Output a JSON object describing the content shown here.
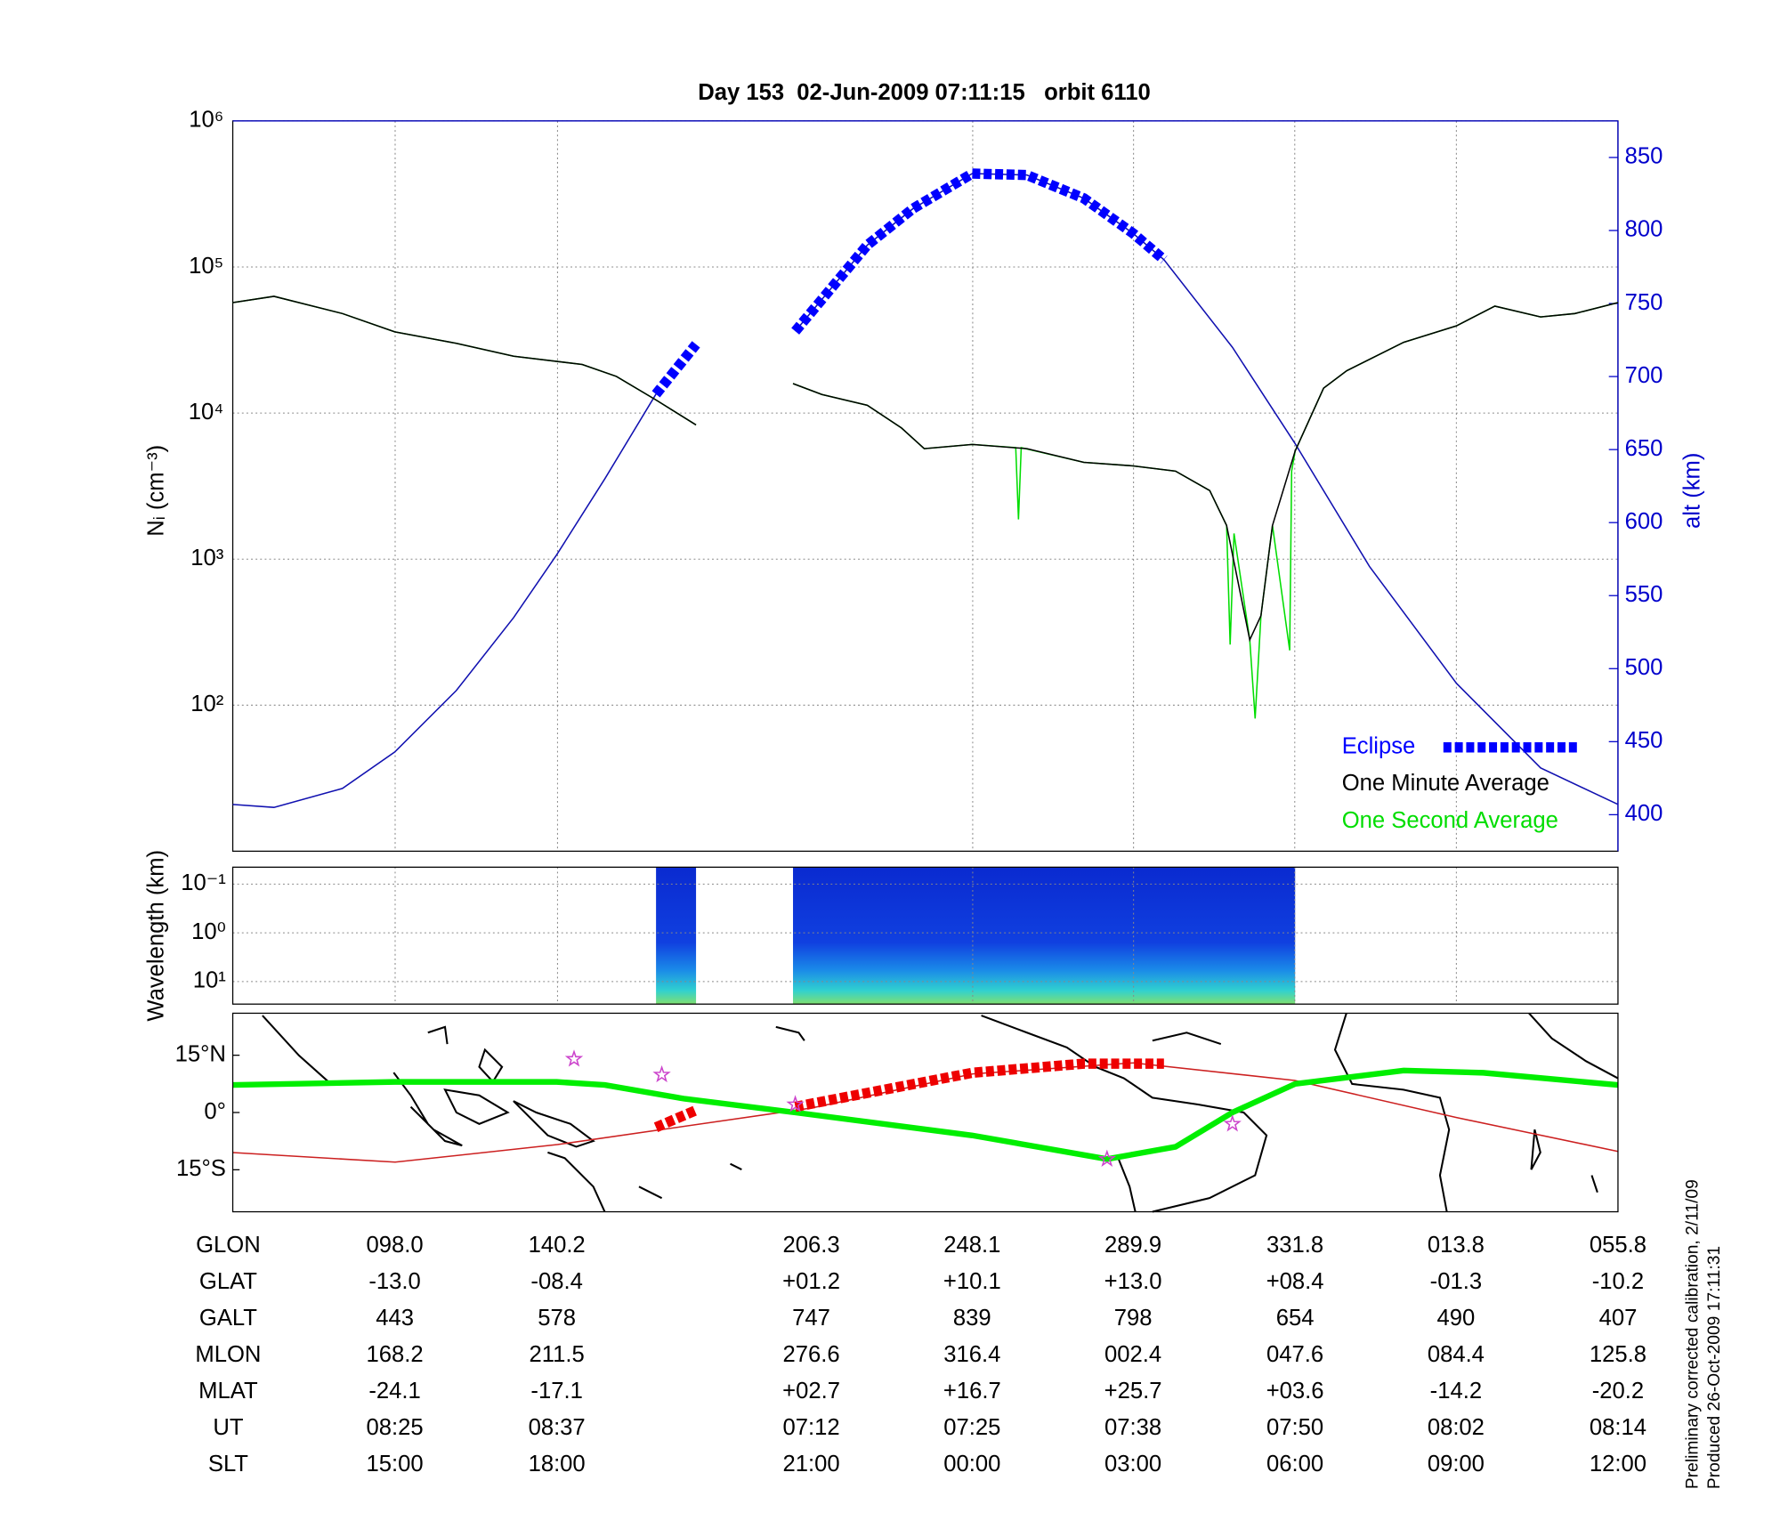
{
  "chart_data": [
    {
      "type": "line",
      "title": "Day 153  02-Jun-2009 07:11:15   orbit 6110",
      "ylabel": "Nᵢ (cm⁻³)",
      "y2label": "alt (km)",
      "ylog": true,
      "ylim": [
        10,
        1000000
      ],
      "yticks": [
        {
          "value": 100,
          "label": "10²"
        },
        {
          "value": 1000,
          "label": "10³"
        },
        {
          "value": 10000,
          "label": "10⁴"
        },
        {
          "value": 100000,
          "label": "10⁵"
        },
        {
          "value": 1000000,
          "label": "10⁶"
        }
      ],
      "y2lim": [
        375,
        875
      ],
      "y2ticks": [
        400,
        450,
        500,
        550,
        600,
        650,
        700,
        750,
        800,
        850
      ],
      "xlim": [
        55.8,
        415.8
      ],
      "xticks": [
        98,
        140.2,
        248.1,
        289.9,
        331.8,
        373.8
      ],
      "grid": true,
      "legend": "lower right",
      "series": [
        {
          "color": "#1010b0",
          "axis": "y2",
          "x": [
            55.8,
            66.5,
            84.3,
            97.9,
            113.9,
            128.8,
            140.0,
            152.5,
            165.8,
            190,
            202.0,
            220.7,
            232.6,
            248.0,
            262.2,
            277.0,
            289.8,
            297.8,
            315.6,
            331.9,
            351.2,
            373.8,
            395.7,
            415.8
          ],
          "values": [
            407,
            405,
            418,
            443,
            485,
            535,
            578,
            630,
            688,
            null,
            731,
            790,
            815,
            839,
            838,
            822,
            798,
            780,
            720,
            654,
            570,
            490,
            432,
            407
          ]
        },
        {
          "name": "Eclipse",
          "color": "#0000ff",
          "axis": "y2",
          "marker": "square",
          "x": [
            165.8,
            176.2,
            190,
            202.0,
            220.7,
            232.6,
            248.0,
            262.2,
            277.0,
            289.8,
            297.8
          ],
          "values": [
            688,
            722,
            null,
            731,
            790,
            815,
            839,
            838,
            822,
            798,
            780
          ]
        },
        {
          "name": "One Minute Average",
          "color": "#000000",
          "x": [
            55.8,
            66.5,
            84.3,
            97.9,
            113.9,
            128.8,
            146.6,
            155.5,
            165.8,
            176.2,
            190,
            201.4,
            208.9,
            220.7,
            229.6,
            235.5,
            248.0,
            262.2,
            277.0,
            289.8,
            300.8,
            309.7,
            314.1,
            320.1,
            323.0,
            326.0,
            331.9,
            339.3,
            345.3,
            360.1,
            373.8,
            383.8,
            395.7,
            404.6,
            415.8
          ],
          "values": [
            57000,
            63000,
            48000,
            36000,
            30000,
            24500,
            21500,
            17800,
            12300,
            8300,
            null,
            15900,
            13400,
            11300,
            7900,
            5700,
            6100,
            5700,
            4600,
            4350,
            4000,
            2950,
            1700,
            280,
            410,
            1700,
            5500,
            14800,
            19500,
            30500,
            39500,
            54000,
            45500,
            48000,
            57000
          ]
        },
        {
          "name": "One Second Average",
          "color": "#00dd00",
          "x": [
            55.8,
            66.5,
            84.3,
            97.9,
            113.9,
            128.8,
            146.6,
            155.5,
            165.8,
            176.2,
            190,
            201.4,
            208.9,
            220.7,
            229.6,
            235.5,
            248.0,
            259.3,
            260.0,
            260.7,
            277.0,
            289.8,
            300.8,
            309.7,
            314.1,
            315.0,
            316.0,
            320.1,
            321.5,
            323.0,
            326.0,
            330.5,
            331.0,
            331.9,
            339.3,
            345.3,
            360.1,
            373.8,
            383.8,
            395.7,
            404.6,
            415.8
          ],
          "values": [
            57000,
            63000,
            48000,
            36000,
            30000,
            24500,
            21500,
            17800,
            12300,
            8300,
            null,
            15900,
            13400,
            11300,
            7900,
            5700,
            6100,
            5800,
            1870,
            5800,
            4600,
            4350,
            4000,
            2950,
            1700,
            260,
            1500,
            280,
            81,
            410,
            1700,
            237,
            4000,
            5500,
            14800,
            19500,
            30500,
            39500,
            54000,
            45500,
            48000,
            57000
          ]
        }
      ]
    },
    {
      "type": "spectrogram",
      "ylabel": "Wavelength (km)",
      "ylog": true,
      "ylim": [
        29,
        0.045
      ],
      "yticks": [
        {
          "value": 0.1,
          "label": "10⁻¹"
        },
        {
          "value": 1,
          "label": "10⁰"
        },
        {
          "value": 10,
          "label": "10¹"
        }
      ],
      "xlim": [
        55.8,
        415.8
      ],
      "xticks": [
        98,
        140.2,
        248.1,
        289.9,
        331.8,
        373.8
      ],
      "segments": [
        [
          165.8,
          176.2
        ],
        [
          201.4,
          331.9
        ]
      ]
    },
    {
      "type": "map",
      "ylim": [
        -26,
        26
      ],
      "yticks": [
        {
          "value": 15,
          "label": "15°N"
        },
        {
          "value": 0,
          "label": "0°"
        },
        {
          "value": -15,
          "label": "15°S"
        }
      ],
      "xlim": [
        55.8,
        415.8
      ],
      "series": [
        {
          "color": "#00ee00",
          "x": [
            55.8,
            97.9,
            140.0,
            152.5,
            173.3,
            202.0,
            248.0,
            283.0,
            300.8,
            315.6,
            331.9,
            360.1,
            380.8,
            415.8
          ],
          "values": [
            7.2,
            8,
            8,
            7.2,
            3.6,
            0,
            -6,
            -12.2,
            -9,
            0,
            7.5,
            11,
            10.4,
            7.2
          ]
        },
        {
          "color": "#cc2020",
          "x": [
            55.8,
            98,
            140.2,
            206.3,
            248.1,
            289.9,
            331.8,
            373.8,
            415.8
          ],
          "values": [
            -10.5,
            -13,
            -8.4,
            1.2,
            10.1,
            13,
            8.4,
            -1.3,
            -10.2
          ]
        },
        {
          "color": "#ee0000",
          "marker": "square",
          "x": [
            165.8,
            176.2,
            190,
            202.0,
            248.0,
            277.0,
            297.8
          ],
          "values": [
            -3.9,
            0.6,
            null,
            1.5,
            10.4,
            12.8,
            12.8
          ]
        }
      ],
      "markers": {
        "color": "#cc44cc",
        "x": [
          144.5,
          167.3,
          202.0,
          283.0,
          315.6
        ],
        "y": [
          14.0,
          9.9,
          2.1,
          -12.2,
          -3.0
        ]
      }
    }
  ],
  "table": {
    "rows": [
      [
        "GLON",
        "098.0",
        "140.2",
        "206.3",
        "248.1",
        "289.9",
        "331.8",
        "013.8",
        "055.8"
      ],
      [
        "GLAT",
        "-13.0",
        "-08.4",
        "+01.2",
        "+10.1",
        "+13.0",
        "+08.4",
        "-01.3",
        "-10.2"
      ],
      [
        "GALT",
        "443",
        "578",
        "747",
        "839",
        "798",
        "654",
        "490",
        "407"
      ],
      [
        "MLON",
        "168.2",
        "211.5",
        "276.6",
        "316.4",
        "002.4",
        "047.6",
        "084.4",
        "125.8"
      ],
      [
        "MLAT",
        "-24.1",
        "-17.1",
        "+02.7",
        "+16.7",
        "+25.7",
        "+03.6",
        "-14.2",
        "-20.2"
      ],
      [
        "UT",
        "08:25",
        "08:37",
        "07:12",
        "07:25",
        "07:38",
        "07:50",
        "08:02",
        "08:14"
      ],
      [
        "SLT",
        "15:00",
        "18:00",
        "21:00",
        "00:00",
        "03:00",
        "06:00",
        "09:00",
        "12:00"
      ]
    ]
  },
  "footnote": [
    "Preliminary corrected calibration, 2/11/09",
    "Produced 26-Oct-2009 17:11:31"
  ]
}
